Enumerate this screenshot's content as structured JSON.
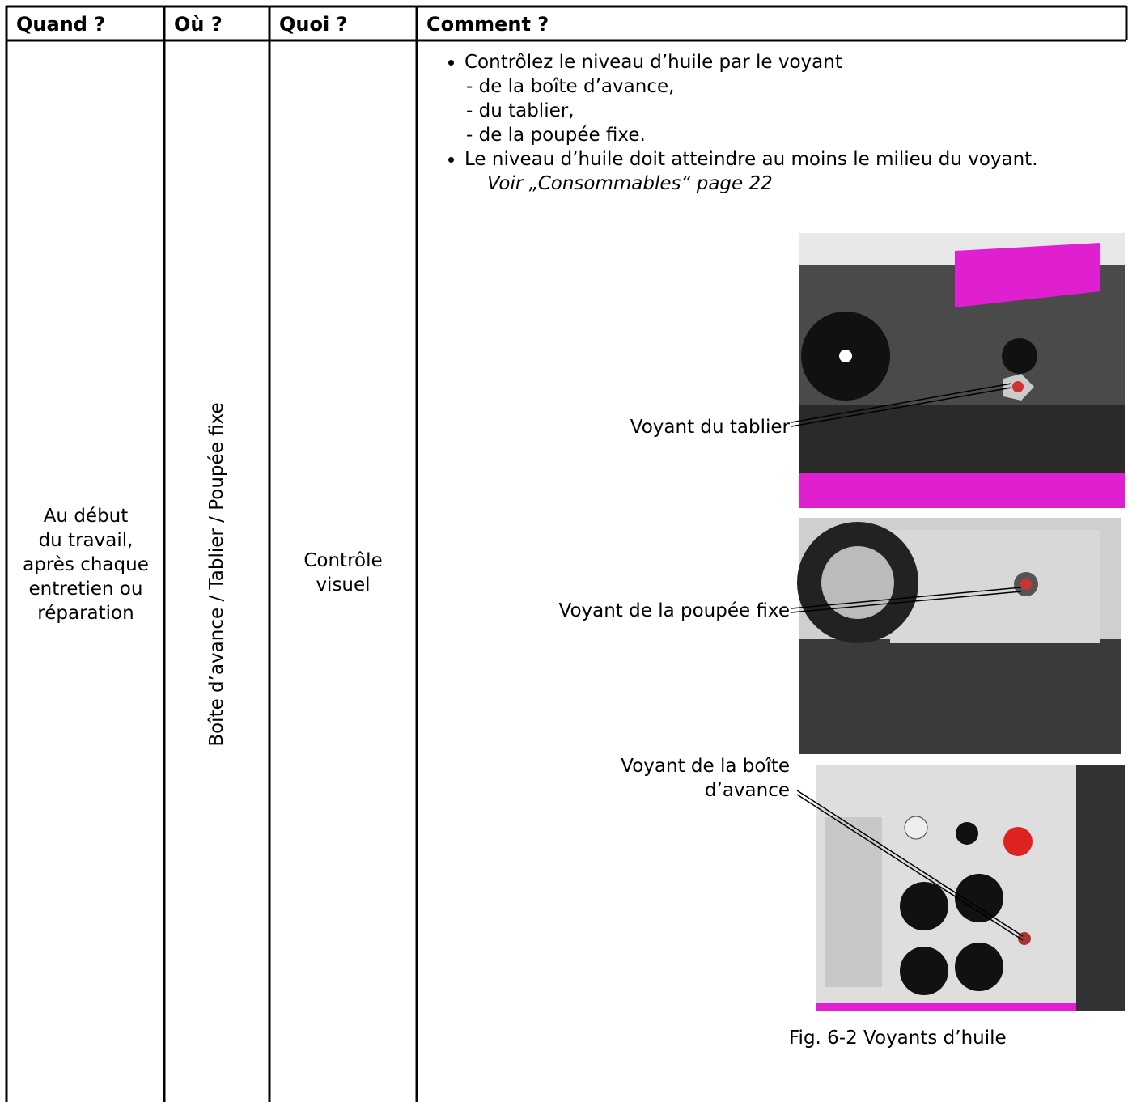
{
  "table": {
    "headers": [
      "Quand ?",
      "Où ?",
      "Quoi ?",
      "Comment ?"
    ],
    "row": {
      "when": [
        "Au début",
        "du travail,",
        "après chaque",
        "entretien ou",
        "réparation"
      ],
      "where": "Boîte d’avance / Tablier / Poupée fixe",
      "what": [
        "Contrôle",
        "visuel"
      ],
      "how": {
        "bullets": [
          {
            "text": "Contrôlez le niveau d’huile par le voyant",
            "sub": [
              "- de la boîte d’avance,",
              "- du tablier,",
              "- de la poupée fixe."
            ]
          },
          {
            "text": "Le niveau d’huile doit atteindre au moins le milieu du voyant.",
            "ref": "Voir „Consommables“ page 22"
          }
        ],
        "figure": {
          "callouts": [
            [
              "Voyant du tablier"
            ],
            [
              "Voyant de la poupée fixe"
            ],
            [
              "Voyant de la boîte",
              "d’avance"
            ]
          ],
          "caption": "Fig. 6-2  Voyants d’huile"
        }
      }
    }
  }
}
